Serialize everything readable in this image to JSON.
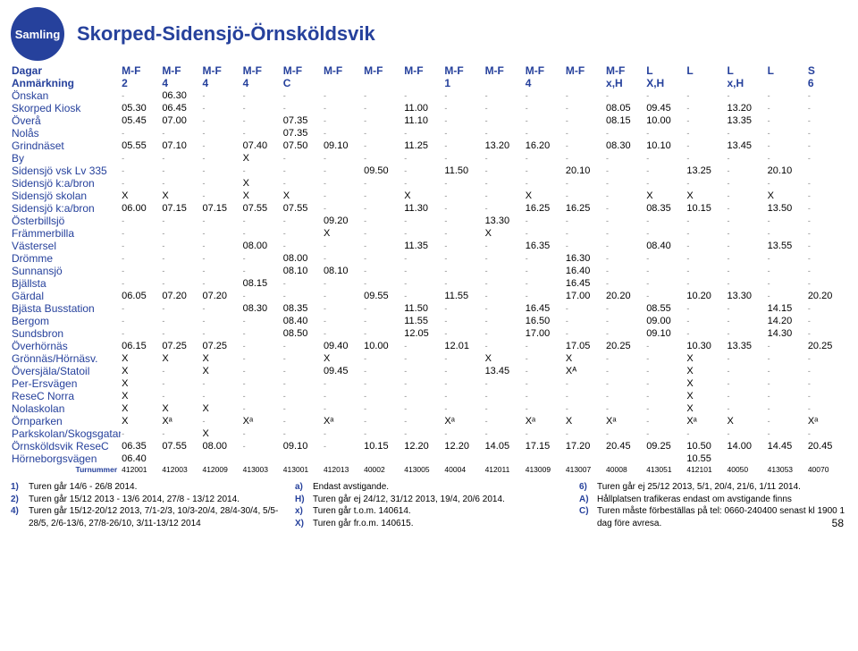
{
  "badge": "Samling",
  "title": "Skorped-Sidensjö-Örnsköldsvik",
  "days_label": "Dagar",
  "days": [
    "M-F",
    "M-F",
    "M-F",
    "M-F",
    "M-F",
    "M-F",
    "M-F",
    "M-F",
    "M-F",
    "M-F",
    "M-F",
    "M-F",
    "M-F",
    "L",
    "L",
    "L",
    "L",
    "S"
  ],
  "note_label": "Anmärkning",
  "notes": [
    "2",
    "4",
    "4",
    "4",
    "C",
    "",
    "",
    "",
    "1",
    "",
    "4",
    "",
    "x,H",
    "X,H",
    "",
    "x,H",
    "",
    "6"
  ],
  "stops": [
    {
      "name": "Önskan",
      "t": [
        "-",
        "06.30",
        "-",
        "-",
        "-",
        "-",
        "-",
        "-",
        "-",
        "-",
        "-",
        "-",
        "-",
        "-",
        "-",
        "-",
        "-",
        "-"
      ]
    },
    {
      "name": "Skorped Kiosk",
      "t": [
        "05.30",
        "06.45",
        "-",
        "-",
        "-",
        "-",
        "-",
        "11.00",
        "-",
        "-",
        "-",
        "-",
        "08.05",
        "09.45",
        "-",
        "13.20",
        "-",
        "-"
      ]
    },
    {
      "name": "Överå",
      "t": [
        "05.45",
        "07.00",
        "-",
        "-",
        "07.35",
        "-",
        "-",
        "11.10",
        "-",
        "-",
        "-",
        "-",
        "08.15",
        "10.00",
        "-",
        "13.35",
        "-",
        "-"
      ]
    },
    {
      "name": "Nolås",
      "t": [
        "-",
        "-",
        "-",
        "-",
        "07.35",
        "-",
        "-",
        "-",
        "-",
        "-",
        "-",
        "-",
        "-",
        "-",
        "-",
        "-",
        "-",
        "-"
      ]
    },
    {
      "name": "Grindnäset",
      "t": [
        "05.55",
        "07.10",
        "-",
        "07.40",
        "07.50",
        "09.10",
        "-",
        "11.25",
        "-",
        "13.20",
        "16.20",
        "-",
        "08.30",
        "10.10",
        "-",
        "13.45",
        "-",
        "-"
      ]
    },
    {
      "name": "By",
      "t": [
        "-",
        "-",
        "-",
        "X",
        "-",
        "-",
        "-",
        "-",
        "-",
        "-",
        "-",
        "-",
        "-",
        "-",
        "-",
        "-",
        "-",
        "-"
      ]
    },
    {
      "name": "Sidensjö vsk Lv 335",
      "t": [
        "-",
        "-",
        "-",
        "-",
        "-",
        "-",
        "09.50",
        "-",
        "11.50",
        "-",
        "-",
        "20.10",
        "-",
        "-",
        "13.25",
        "-",
        "20.10",
        ""
      ]
    },
    {
      "name": "Sidensjö k:a/bron",
      "t": [
        "-",
        "-",
        "-",
        "X",
        "-",
        "-",
        "-",
        "-",
        "-",
        "-",
        "-",
        "-",
        "-",
        "-",
        "-",
        "-",
        "-",
        "-"
      ]
    },
    {
      "name": "Sidensjö skolan",
      "t": [
        "X",
        "X",
        "-",
        "X",
        "X",
        "-",
        "-",
        "X",
        "-",
        "-",
        "X",
        "-",
        "-",
        "X",
        "X",
        "-",
        "X",
        "-"
      ]
    },
    {
      "name": "Sidensjö k:a/bron",
      "t": [
        "06.00",
        "07.15",
        "07.15",
        "07.55",
        "07.55",
        "-",
        "-",
        "11.30",
        "-",
        "-",
        "16.25",
        "16.25",
        "-",
        "08.35",
        "10.15",
        "-",
        "13.50",
        "-"
      ]
    },
    {
      "name": "Österbillsjö",
      "t": [
        "-",
        "-",
        "-",
        "-",
        "-",
        "09.20",
        "-",
        "-",
        "-",
        "13.30",
        "-",
        "-",
        "-",
        "-",
        "-",
        "-",
        "-",
        "-"
      ]
    },
    {
      "name": "Främmerbilla",
      "t": [
        "-",
        "-",
        "-",
        "-",
        "-",
        "X",
        "-",
        "-",
        "-",
        "X",
        "-",
        "-",
        "-",
        "-",
        "-",
        "-",
        "-",
        "-"
      ]
    },
    {
      "name": "Västersel",
      "t": [
        "-",
        "-",
        "-",
        "08.00",
        "-",
        "-",
        "-",
        "11.35",
        "-",
        "-",
        "16.35",
        "-",
        "-",
        "08.40",
        "-",
        "-",
        "13.55",
        "-"
      ]
    },
    {
      "name": "Drömme",
      "t": [
        "-",
        "-",
        "-",
        "-",
        "08.00",
        "-",
        "-",
        "-",
        "-",
        "-",
        "-",
        "16.30",
        "-",
        "-",
        "-",
        "-",
        "-",
        "-"
      ]
    },
    {
      "name": "Sunnansjö",
      "t": [
        "-",
        "-",
        "-",
        "-",
        "08.10",
        "08.10",
        "-",
        "-",
        "-",
        "-",
        "-",
        "16.40",
        "-",
        "-",
        "-",
        "-",
        "-",
        "-"
      ]
    },
    {
      "name": "Bjällsta",
      "t": [
        "-",
        "-",
        "-",
        "08.15",
        "-",
        "-",
        "-",
        "-",
        "-",
        "-",
        "-",
        "16.45",
        "-",
        "-",
        "-",
        "-",
        "-",
        "-"
      ]
    },
    {
      "name": "Gärdal",
      "t": [
        "06.05",
        "07.20",
        "07.20",
        "-",
        "-",
        "-",
        "09.55",
        "-",
        "11.55",
        "-",
        "-",
        "17.00",
        "20.20",
        "-",
        "10.20",
        "13.30",
        "-",
        "20.20"
      ]
    },
    {
      "name": "Bjästa Busstation",
      "t": [
        "-",
        "-",
        "-",
        "08.30",
        "08.35",
        "-",
        "-",
        "11.50",
        "-",
        "-",
        "16.45",
        "-",
        "-",
        "08.55",
        "-",
        "-",
        "14.15",
        "-"
      ]
    },
    {
      "name": "Bergom",
      "t": [
        "-",
        "-",
        "-",
        "-",
        "08.40",
        "-",
        "-",
        "11.55",
        "-",
        "-",
        "16.50",
        "-",
        "-",
        "09.00",
        "-",
        "-",
        "14.20",
        "-"
      ]
    },
    {
      "name": "Sundsbron",
      "t": [
        "-",
        "-",
        "-",
        "-",
        "08.50",
        "-",
        "-",
        "12.05",
        "-",
        "-",
        "17.00",
        "-",
        "-",
        "09.10",
        "-",
        "-",
        "14.30",
        "-"
      ]
    },
    {
      "name": "Överhörnäs",
      "t": [
        "06.15",
        "07.25",
        "07.25",
        "-",
        "-",
        "09.40",
        "10.00",
        "-",
        "12.01",
        "-",
        "-",
        "17.05",
        "20.25",
        "-",
        "10.30",
        "13.35",
        "-",
        "20.25"
      ]
    },
    {
      "name": "Grönnäs/Hörnäsv.",
      "t": [
        "X",
        "X",
        "X",
        "-",
        "-",
        "X",
        "-",
        "-",
        "-",
        "X",
        "-",
        "X",
        "-",
        "-",
        "X",
        "-",
        "-",
        "-"
      ]
    },
    {
      "name": "Översjäla/Statoil",
      "t": [
        "X",
        "-",
        "X",
        "-",
        "-",
        "09.45",
        "-",
        "-",
        "-",
        "13.45",
        "-",
        "Xᴬ",
        "-",
        "-",
        "X",
        "-",
        "-",
        "-"
      ]
    },
    {
      "name": "Per-Ersvägen",
      "t": [
        "X",
        "-",
        "-",
        "-",
        "-",
        "-",
        "-",
        "-",
        "-",
        "-",
        "-",
        "-",
        "-",
        "-",
        "X",
        "-",
        "-",
        "-"
      ]
    },
    {
      "name": "ReseC Norra",
      "t": [
        "X",
        "-",
        "-",
        "-",
        "-",
        "-",
        "-",
        "-",
        "-",
        "-",
        "-",
        "-",
        "-",
        "-",
        "X",
        "-",
        "-",
        "-"
      ]
    },
    {
      "name": "Nolaskolan",
      "t": [
        "X",
        "X",
        "X",
        "-",
        "-",
        "-",
        "-",
        "-",
        "-",
        "-",
        "-",
        "-",
        "-",
        "-",
        "X",
        "-",
        "-",
        "-"
      ]
    },
    {
      "name": "Örnparken",
      "t": [
        "X",
        "Xᵃ",
        "-",
        "Xᵃ",
        "-",
        "Xᵃ",
        "-",
        "-",
        "Xᵃ",
        "-",
        "Xᵃ",
        "X",
        "Xᵃ",
        "-",
        "Xᵃ",
        "X",
        "-",
        "Xᵃ"
      ]
    },
    {
      "name": "Parkskolan/Skogsgatan",
      "t": [
        "-",
        "-",
        "X",
        "-",
        "-",
        "-",
        "-",
        "-",
        "-",
        "-",
        "-",
        "-",
        "-",
        "-",
        "-",
        "-",
        "-",
        "-"
      ]
    },
    {
      "name": "Örnsköldsvik ReseC",
      "t": [
        "06.35",
        "07.55",
        "08.00",
        "-",
        "09.10",
        "-",
        "10.15",
        "12.20",
        "12.20",
        "14.05",
        "17.15",
        "17.20",
        "20.45",
        "09.25",
        "10.50",
        "14.00",
        "14.45",
        "20.45"
      ]
    },
    {
      "name": "Hörneborgsvägen",
      "t": [
        "06.40",
        "",
        "",
        "",
        "",
        "",
        "",
        "",
        "",
        "",
        "",
        "",
        "",
        "",
        "10.55",
        "",
        "",
        ""
      ]
    }
  ],
  "tur_label": "Turnummer",
  "turnummer": [
    "412001",
    "412003",
    "412009",
    "413003",
    "413001",
    "412013",
    "40002",
    "413005",
    "40004",
    "412011",
    "413009",
    "413007",
    "40008",
    "413051",
    "412101",
    "40050",
    "413053",
    "40070"
  ],
  "footnotes": {
    "col1": [
      {
        "k": "1)",
        "v": "Turen går 14/6 - 26/8 2014."
      },
      {
        "k": "2)",
        "v": "Turen går 15/12 2013 - 13/6 2014, 27/8 - 13/12 2014."
      },
      {
        "k": "4)",
        "v": "Turen går 15/12-20/12 2013, 7/1-2/3, 10/3-20/4, 28/4-30/4, 5/5-28/5, 2/6-13/6, 27/8-26/10, 3/11-13/12 2014"
      }
    ],
    "col2": [
      {
        "k": "a)",
        "v": "Endast avstigande."
      },
      {
        "k": "H)",
        "v": "Turen går ej 24/12, 31/12 2013, 19/4, 20/6 2014."
      },
      {
        "k": "x)",
        "v": "Turen går t.o.m. 140614."
      },
      {
        "k": "X)",
        "v": "Turen går fr.o.m. 140615."
      }
    ],
    "col3": [
      {
        "k": "6)",
        "v": "Turen går ej 25/12 2013, 5/1, 20/4, 21/6, 1/11 2014."
      },
      {
        "k": "A)",
        "v": "Hållplatsen trafikeras endast om avstigande finns"
      },
      {
        "k": "C)",
        "v": "Turen måste förbeställas på tel: 0660-240400 senast kl 1900 1 dag före avresa."
      }
    ]
  },
  "page": "58"
}
